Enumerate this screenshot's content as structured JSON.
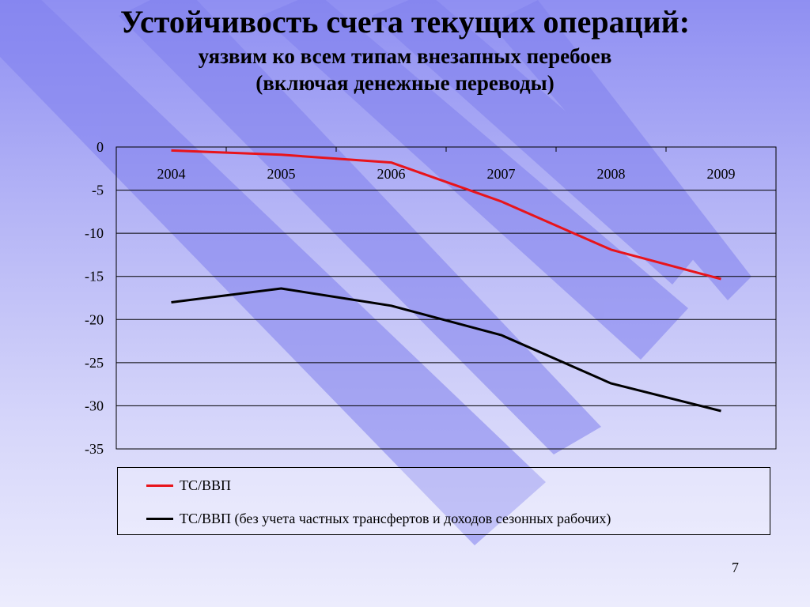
{
  "slide": {
    "title": "Устойчивость счета текущих операций:",
    "subtitle_line1": "уязвим ко всем типам внезапных перебоев",
    "subtitle_line2": "(включая денежные переводы)",
    "page_number": "7"
  },
  "colors": {
    "series_red": "#e8141b",
    "series_black": "#000000",
    "background_top": "#8f8ff2",
    "stripe": "#8484ee"
  },
  "chart_data": {
    "type": "line",
    "x": [
      "2004",
      "2005",
      "2006",
      "2007",
      "2008",
      "2009"
    ],
    "ylim": [
      -35,
      0
    ],
    "yticks": [
      "0",
      "-5",
      "-10",
      "-15",
      "-20",
      "-25",
      "-30",
      "-35"
    ],
    "grid": true,
    "x_axis_position": "top",
    "legend_position": "bottom",
    "series": [
      {
        "name": "ТС/ВВП",
        "color": "#e8141b",
        "values": [
          -0.4,
          -0.9,
          -1.8,
          -6.3,
          -11.9,
          -15.3
        ]
      },
      {
        "name": "ТС/ВВП (без учета частных трансфертов и доходов сезонных рабочих)",
        "color": "#000000",
        "values": [
          -18.0,
          -16.4,
          -18.4,
          -21.8,
          -27.4,
          -30.6
        ]
      }
    ]
  }
}
